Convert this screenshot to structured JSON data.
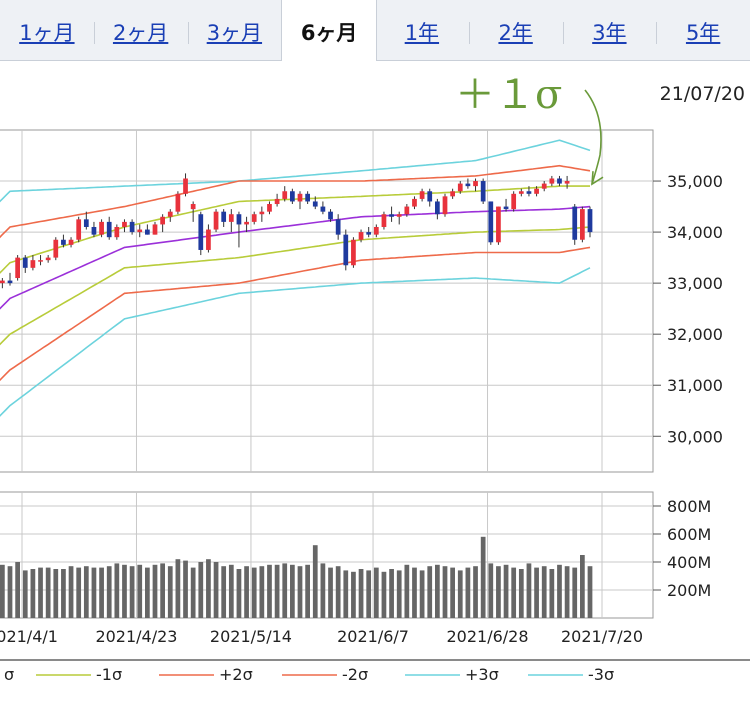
{
  "tabs": [
    {
      "label": "1ヶ月",
      "active": false
    },
    {
      "label": "2ヶ月",
      "active": false
    },
    {
      "label": "3ヶ月",
      "active": false
    },
    {
      "label": "6ヶ月",
      "active": true
    },
    {
      "label": "1年",
      "active": false
    },
    {
      "label": "2年",
      "active": false
    },
    {
      "label": "3年",
      "active": false
    },
    {
      "label": "5年",
      "active": false
    }
  ],
  "annotation": "＋１σ",
  "date_label": "21/07/20",
  "colors": {
    "up": "#e8323c",
    "down": "#1f3a9e",
    "sma": "#9b30d9",
    "sigma1": "#b8cc3a",
    "sigma2": "#ee6a4a",
    "sigma3": "#6cd3dd",
    "volume": "#666666",
    "grid": "#c8c8c8",
    "annotation": "#6a9a3a"
  },
  "chart_data": [
    {
      "type": "candlestick",
      "title": "",
      "ylim": [
        29300,
        36000
      ],
      "y_ticks": [
        "35,000",
        "34,000",
        "33,000",
        "32,000",
        "31,000",
        "30,000"
      ],
      "y_tick_values": [
        35000,
        34000,
        33000,
        32000,
        31000,
        30000
      ],
      "x_ticks": [
        "2021/4/1",
        "2021/4/23",
        "2021/5/14",
        "2021/6/7",
        "2021/6/28",
        "2021/7/20"
      ],
      "x_tick_indices": [
        0,
        15,
        30,
        46,
        61,
        76
      ],
      "first_index": -2,
      "last_index": 76,
      "candles": [
        [
          33100,
          33100,
          32950,
          33000
        ],
        [
          33000,
          33100,
          32900,
          33050
        ],
        [
          33050,
          33200,
          32950,
          33000
        ],
        [
          33100,
          33550,
          33050,
          33500
        ],
        [
          33500,
          33550,
          33200,
          33300
        ],
        [
          33300,
          33550,
          33250,
          33450
        ],
        [
          33450,
          33550,
          33350,
          33450
        ],
        [
          33450,
          33550,
          33400,
          33500
        ],
        [
          33500,
          33900,
          33450,
          33850
        ],
        [
          33850,
          33950,
          33700,
          33750
        ],
        [
          33750,
          33900,
          33700,
          33850
        ],
        [
          33850,
          34300,
          33800,
          34250
        ],
        [
          34250,
          34400,
          34050,
          34100
        ],
        [
          34100,
          34200,
          33900,
          33950
        ],
        [
          33950,
          34250,
          33900,
          34200
        ],
        [
          34200,
          34300,
          33850,
          33900
        ],
        [
          33900,
          34150,
          33850,
          34100
        ],
        [
          34100,
          34250,
          34000,
          34200
        ],
        [
          34200,
          34250,
          33950,
          34000
        ],
        [
          34000,
          34150,
          33900,
          34050
        ],
        [
          34050,
          34150,
          33950,
          33950
        ],
        [
          33950,
          34200,
          33950,
          34150
        ],
        [
          34150,
          34350,
          34000,
          34300
        ],
        [
          34300,
          34450,
          34200,
          34400
        ],
        [
          34400,
          34800,
          34350,
          34750
        ],
        [
          34750,
          35150,
          34700,
          35050
        ],
        [
          34450,
          34600,
          34200,
          34550
        ],
        [
          34350,
          34400,
          33550,
          33650
        ],
        [
          33650,
          34150,
          33600,
          34050
        ],
        [
          34050,
          34450,
          34000,
          34400
        ],
        [
          34400,
          34450,
          34100,
          34200
        ],
        [
          34200,
          34450,
          34000,
          34350
        ],
        [
          34350,
          34400,
          33700,
          34150
        ],
        [
          34150,
          34300,
          34000,
          34200
        ],
        [
          34200,
          34400,
          34150,
          34350
        ],
        [
          34350,
          34500,
          34200,
          34400
        ],
        [
          34400,
          34600,
          34350,
          34550
        ],
        [
          34550,
          34750,
          34500,
          34650
        ],
        [
          34650,
          34900,
          34600,
          34800
        ],
        [
          34800,
          34850,
          34550,
          34600
        ],
        [
          34600,
          34800,
          34450,
          34750
        ],
        [
          34750,
          34800,
          34550,
          34600
        ],
        [
          34600,
          34700,
          34450,
          34500
        ],
        [
          34500,
          34600,
          34350,
          34400
        ],
        [
          34400,
          34450,
          34200,
          34250
        ],
        [
          34250,
          34350,
          33850,
          33950
        ],
        [
          33950,
          34050,
          33250,
          33350
        ],
        [
          33350,
          33900,
          33300,
          33850
        ],
        [
          33850,
          34050,
          33800,
          34000
        ],
        [
          34000,
          34100,
          33900,
          33950
        ],
        [
          33950,
          34150,
          33900,
          34100
        ],
        [
          34100,
          34400,
          34050,
          34350
        ],
        [
          34350,
          34500,
          34200,
          34300
        ],
        [
          34300,
          34400,
          34150,
          34350
        ],
        [
          34350,
          34550,
          34300,
          34500
        ],
        [
          34500,
          34700,
          34450,
          34650
        ],
        [
          34650,
          34850,
          34600,
          34800
        ],
        [
          34800,
          34850,
          34500,
          34600
        ],
        [
          34600,
          34650,
          34250,
          34350
        ],
        [
          34350,
          34750,
          34300,
          34700
        ],
        [
          34700,
          34850,
          34650,
          34800
        ],
        [
          34800,
          35000,
          34750,
          34950
        ],
        [
          34950,
          35050,
          34850,
          34900
        ],
        [
          34900,
          35050,
          34800,
          35000
        ],
        [
          35000,
          35050,
          34550,
          34600
        ],
        [
          34600,
          34600,
          33750,
          33800
        ],
        [
          33800,
          34500,
          33750,
          34500
        ],
        [
          34500,
          34650,
          34400,
          34450
        ],
        [
          34450,
          34800,
          34400,
          34750
        ],
        [
          34750,
          34850,
          34700,
          34800
        ],
        [
          34800,
          34900,
          34700,
          34750
        ],
        [
          34750,
          34900,
          34700,
          34850
        ],
        [
          34850,
          35000,
          34800,
          34950
        ],
        [
          34950,
          35100,
          34900,
          35050
        ],
        [
          35050,
          35100,
          34900,
          34950
        ],
        [
          34950,
          35100,
          34850,
          35000
        ],
        [
          34500,
          34550,
          33750,
          33850
        ],
        [
          33850,
          34500,
          33800,
          34450
        ],
        [
          34450,
          34500,
          33900,
          34000
        ]
      ],
      "bands": {
        "sma": [
          [
            -2,
            32400
          ],
          [
            0,
            32700
          ],
          [
            15,
            33700
          ],
          [
            30,
            34000
          ],
          [
            46,
            34300
          ],
          [
            61,
            34400
          ],
          [
            72,
            34450
          ],
          [
            76,
            34500
          ]
        ],
        "plus1": [
          [
            -2,
            33100
          ],
          [
            0,
            33400
          ],
          [
            15,
            34100
          ],
          [
            30,
            34600
          ],
          [
            46,
            34700
          ],
          [
            61,
            34800
          ],
          [
            72,
            34900
          ],
          [
            76,
            34900
          ]
        ],
        "minus1": [
          [
            -2,
            31700
          ],
          [
            0,
            32000
          ],
          [
            15,
            33300
          ],
          [
            30,
            33500
          ],
          [
            46,
            33850
          ],
          [
            61,
            34000
          ],
          [
            72,
            34050
          ],
          [
            76,
            34100
          ]
        ],
        "plus2": [
          [
            -2,
            33800
          ],
          [
            0,
            34100
          ],
          [
            15,
            34500
          ],
          [
            30,
            35000
          ],
          [
            46,
            35000
          ],
          [
            61,
            35100
          ],
          [
            72,
            35300
          ],
          [
            76,
            35200
          ]
        ],
        "minus2": [
          [
            -2,
            31000
          ],
          [
            0,
            31300
          ],
          [
            15,
            32800
          ],
          [
            30,
            33000
          ],
          [
            46,
            33450
          ],
          [
            61,
            33600
          ],
          [
            72,
            33600
          ],
          [
            76,
            33700
          ]
        ],
        "plus3": [
          [
            -2,
            34500
          ],
          [
            0,
            34800
          ],
          [
            15,
            34900
          ],
          [
            30,
            35000
          ],
          [
            46,
            35200
          ],
          [
            61,
            35400
          ],
          [
            72,
            35800
          ],
          [
            76,
            35600
          ]
        ],
        "minus3": [
          [
            -2,
            30300
          ],
          [
            0,
            30600
          ],
          [
            15,
            32300
          ],
          [
            30,
            32800
          ],
          [
            46,
            33000
          ],
          [
            61,
            33100
          ],
          [
            72,
            33000
          ],
          [
            76,
            33300
          ]
        ]
      },
      "legend": [
        {
          "key": "sma",
          "label": "σ",
          "partial": true
        },
        {
          "key": "sigma1",
          "label": "-1σ"
        },
        {
          "key": "sigma2",
          "label": "+2σ"
        },
        {
          "key": "sigma2",
          "label": "-2σ"
        },
        {
          "key": "sigma3",
          "label": "+3σ"
        },
        {
          "key": "sigma3",
          "label": "-3σ"
        }
      ]
    },
    {
      "type": "bar",
      "title": "",
      "ylim": [
        0,
        900
      ],
      "y_ticks": [
        "800M",
        "600M",
        "400M",
        "200M"
      ],
      "y_tick_values": [
        800,
        600,
        400,
        200
      ],
      "volume_m": [
        370,
        380,
        370,
        400,
        340,
        350,
        360,
        360,
        350,
        350,
        370,
        360,
        370,
        360,
        360,
        370,
        390,
        380,
        370,
        380,
        360,
        380,
        390,
        370,
        420,
        410,
        360,
        400,
        420,
        400,
        370,
        380,
        350,
        370,
        360,
        370,
        380,
        380,
        390,
        380,
        370,
        380,
        520,
        390,
        360,
        370,
        340,
        330,
        350,
        340,
        360,
        330,
        350,
        340,
        380,
        360,
        340,
        370,
        380,
        370,
        360,
        340,
        360,
        370,
        580,
        390,
        370,
        380,
        360,
        350,
        390,
        360,
        370,
        350,
        380,
        370,
        360,
        450,
        370
      ]
    }
  ]
}
